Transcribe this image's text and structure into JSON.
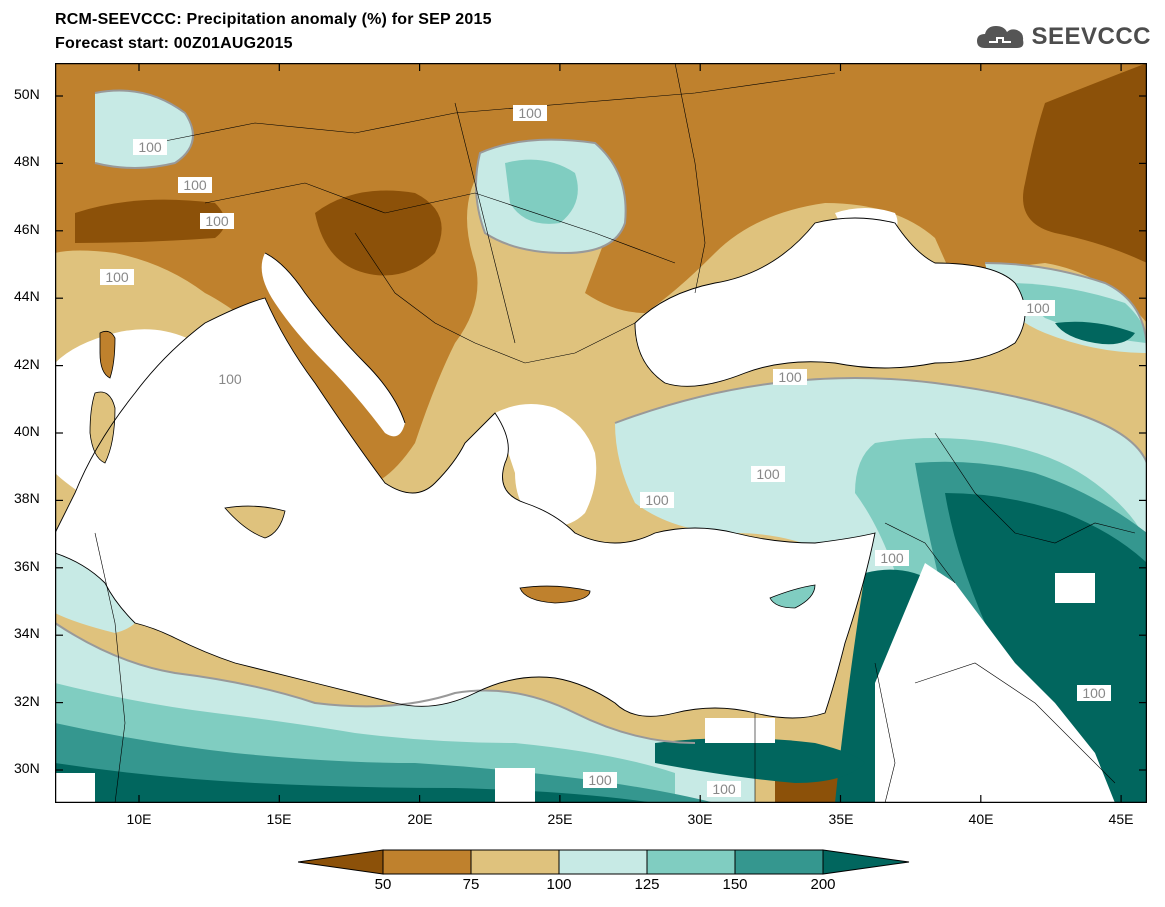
{
  "title": {
    "line1": "RCM-SEEVCCC: Precipitation anomaly (%) for SEP 2015",
    "line2": "Forecast start: 00Z01AUG2015"
  },
  "logo": {
    "text": "SEEVCCC",
    "icon": "cloud-icon"
  },
  "map": {
    "lat_labels": [
      "50N",
      "48N",
      "46N",
      "44N",
      "42N",
      "40N",
      "38N",
      "36N",
      "34N",
      "32N",
      "30N"
    ],
    "lon_labels": [
      "10E",
      "15E",
      "20E",
      "25E",
      "30E",
      "35E",
      "40E",
      "45E"
    ],
    "contour_label": "100",
    "colors": {
      "below_50": "#8c5109",
      "50_75": "#bf812d",
      "75_100": "#dfc27d",
      "100_125": "#c7eae5",
      "125_150": "#80cdc1",
      "150_200": "#35978f",
      "above_200": "#01665e",
      "sea": "#ffffff"
    }
  },
  "legend": {
    "labels": [
      "50",
      "75",
      "100",
      "125",
      "150",
      "200"
    ]
  }
}
